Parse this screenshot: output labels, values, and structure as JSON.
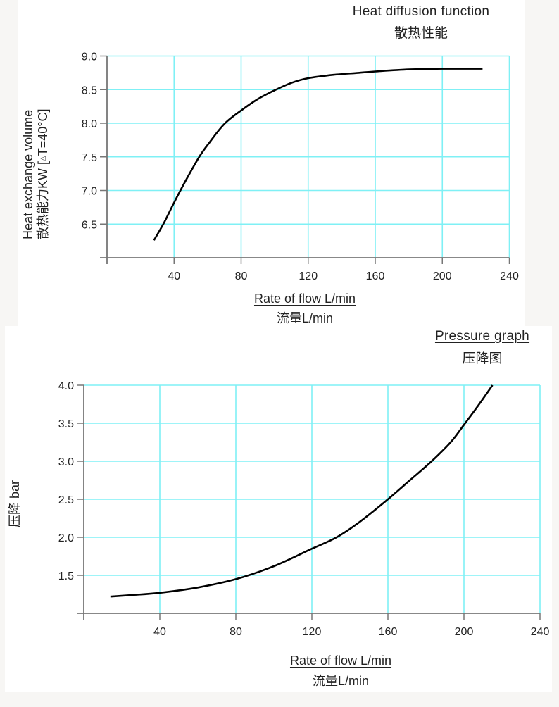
{
  "chart_data": [
    {
      "type": "line",
      "title": "Heat diffusion function",
      "subtitle": "散热性能",
      "xlabel": "Rate of flow L/min",
      "xlabel_cn": "流量L/min",
      "ylabel": "Heat exchange volume",
      "ylabel_cn": "散热能力",
      "ylabel_unit": "KW",
      "ylabel_open": "[",
      "ylabel_delta": "△",
      "ylabel_condition": "T=40°C]",
      "xlim": [
        0,
        240
      ],
      "ylim": [
        6.0,
        9.0
      ],
      "xticks": [
        40,
        80,
        120,
        160,
        200,
        240
      ],
      "xtick_labels": [
        "40",
        "80",
        "120",
        "160",
        "200",
        "240"
      ],
      "yticks": [
        6.5,
        7.0,
        7.5,
        8.0,
        8.5,
        9.0
      ],
      "ytick_labels": [
        "6.5",
        "7.0",
        "7.5",
        "8.0",
        "8.5",
        "9.0"
      ],
      "grid": true,
      "series": [
        {
          "name": "Heat exchange volume",
          "x": [
            28,
            34,
            40,
            47,
            55,
            61,
            70,
            80,
            90,
            100,
            110,
            120,
            135,
            150,
            160,
            180,
            200,
            224
          ],
          "y": [
            6.26,
            6.52,
            6.82,
            7.15,
            7.5,
            7.71,
            7.99,
            8.19,
            8.36,
            8.49,
            8.6,
            8.67,
            8.72,
            8.75,
            8.77,
            8.8,
            8.81,
            8.81
          ]
        }
      ],
      "colors": {
        "grid": "#7ff0f5",
        "axis": "#777777",
        "line": "#000000"
      }
    },
    {
      "type": "line",
      "title": "Pressure graph",
      "subtitle": "压降图",
      "xlabel": "Rate of flow L/min",
      "xlabel_cn": "流量L/min",
      "ylabel": "压降 bar",
      "xlim": [
        0,
        240
      ],
      "ylim": [
        1.0,
        4.0
      ],
      "xticks": [
        40,
        80,
        120,
        160,
        200,
        240
      ],
      "xtick_labels": [
        "40",
        "80",
        "120",
        "160",
        "200",
        "240"
      ],
      "yticks": [
        1.5,
        2.0,
        2.5,
        3.0,
        3.5,
        4.0
      ],
      "ytick_labels": [
        "1.5",
        "2.0",
        "2.5",
        "3.0",
        "3.5",
        "4.0"
      ],
      "grid": true,
      "series": [
        {
          "name": "Pressure drop",
          "x": [
            14,
            25,
            40,
            60,
            80,
            100,
            120,
            133,
            145,
            160,
            172,
            183,
            193,
            200,
            208,
            215
          ],
          "y": [
            1.22,
            1.24,
            1.27,
            1.34,
            1.45,
            1.62,
            1.85,
            2.0,
            2.2,
            2.5,
            2.76,
            3.0,
            3.25,
            3.48,
            3.75,
            4.0
          ]
        }
      ],
      "colors": {
        "grid": "#7ff0f5",
        "axis": "#777777",
        "line": "#000000"
      }
    }
  ]
}
